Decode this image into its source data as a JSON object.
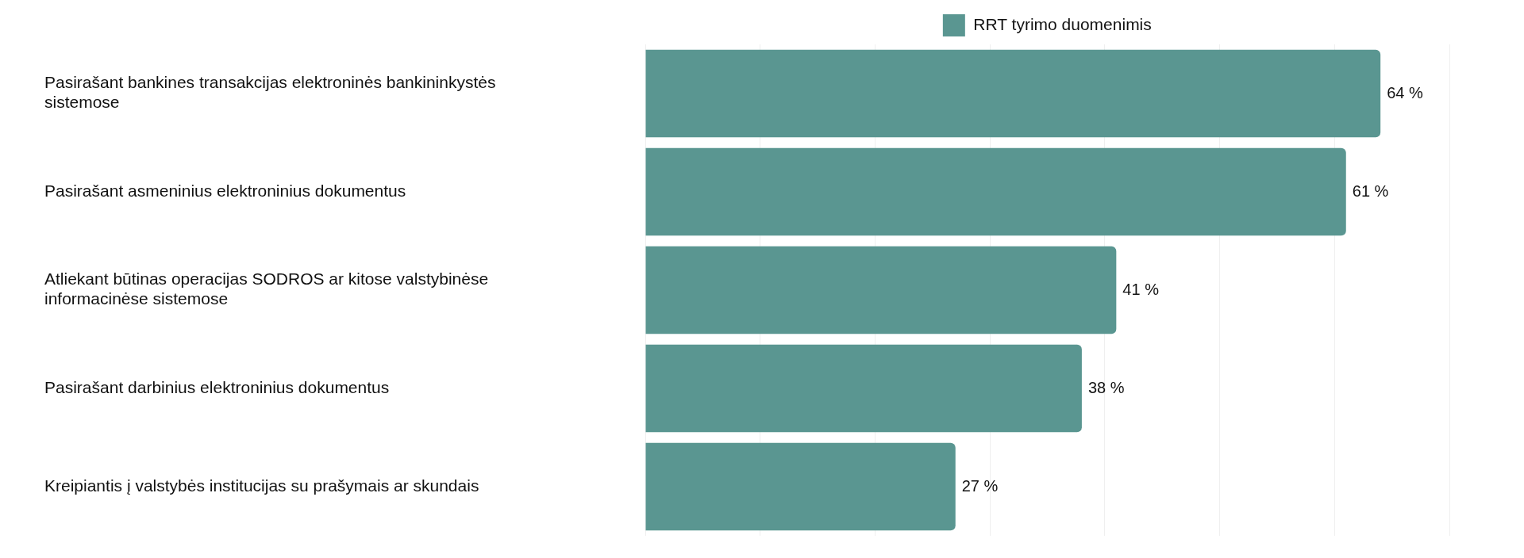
{
  "chart_data": {
    "type": "bar",
    "orientation": "horizontal",
    "categories": [
      "Pasirašant bankines transakcijas elektroninės bankininkystės sistemose",
      "Pasirašant asmeninius elektroninius dokumentus",
      "Atliekant būtinas operacijas SODROS ar kitose valstybinėse informacinėse sistemose",
      "Pasirašant darbinius elektroninius dokumentus",
      "Kreipiantis į valstybės institucijas su prašymais ar skundais"
    ],
    "series": [
      {
        "name": "RRT tyrimo duomenimis",
        "color": "#5a9691",
        "values": [
          64,
          61,
          41,
          38,
          27
        ],
        "value_labels": [
          "64 %",
          "61 %",
          "41 %",
          "38 %",
          "27 %"
        ]
      }
    ],
    "xlim": [
      0,
      70
    ],
    "xticks": [
      {
        "value": 0,
        "label": null
      },
      {
        "value": 10,
        "label": null
      },
      {
        "value": 20,
        "label": null
      },
      {
        "value": 30,
        "label": null
      },
      {
        "value": 40,
        "label": null
      },
      {
        "value": 50,
        "label": null
      },
      {
        "value": 60,
        "label": null
      },
      {
        "value": 70,
        "label": null
      }
    ],
    "grid": "x",
    "legend": "top",
    "tick_labels": "y"
  }
}
